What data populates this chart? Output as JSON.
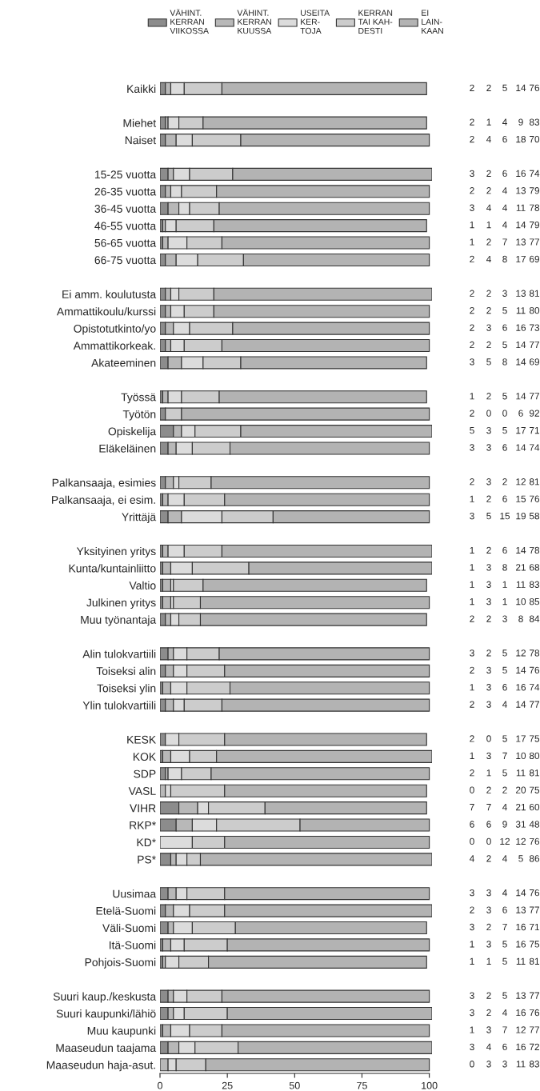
{
  "chart_data": {
    "type": "bar",
    "orientation": "horizontal",
    "stacked": true,
    "data_labels": true,
    "legend": "top",
    "grid": false,
    "tick_labels": "both",
    "categories": [
      "Kaikki",
      null,
      "Miehet",
      "Naiset",
      null,
      "15-25 vuotta",
      "26-35 vuotta",
      "36-45 vuotta",
      "46-55 vuotta",
      "56-65 vuotta",
      "66-75 vuotta",
      null,
      "Ei amm. koulutusta",
      "Ammattikoulu/kurssi",
      "Opistotutkinto/yo",
      "Ammattikorkeak.",
      "Akateeminen",
      null,
      "Työssä",
      "Työtön",
      "Opiskelija",
      "Eläkeläinen",
      null,
      "Palkansaaja, esimies",
      "Palkansaaja, ei esim.",
      "Yrittäjä",
      null,
      "Yksityinen yritys",
      "Kunta/kuntainliitto",
      "Valtio",
      "Julkinen yritys",
      "Muu työnantaja",
      null,
      "Alin tulokvartiili",
      "Toiseksi alin",
      "Toiseksi ylin",
      "Ylin tulokvartiili",
      null,
      "KESK",
      "KOK",
      "SDP",
      "VASL",
      "VIHR",
      "RKP*",
      "KD*",
      "PS*",
      null,
      "Uusimaa",
      "Etelä-Suomi",
      "Väli-Suomi",
      "Itä-Suomi",
      "Pohjois-Suomi",
      null,
      "Suuri kaup./keskusta",
      "Suuri kaupunki/lähiö",
      "Muu kaupunki",
      "Maaseudun taajama",
      "Maaseudun haja-asut."
    ],
    "series": [
      {
        "name": "VÄHINT.\nKERRAN\nVIIKOSSA",
        "color": "#8c8c8c",
        "values": [
          2,
          null,
          2,
          2,
          null,
          3,
          2,
          3,
          1,
          1,
          2,
          null,
          2,
          2,
          2,
          2,
          3,
          null,
          1,
          2,
          5,
          3,
          null,
          2,
          1,
          3,
          null,
          1,
          1,
          1,
          1,
          2,
          null,
          3,
          2,
          1,
          2,
          null,
          2,
          1,
          2,
          0,
          7,
          6,
          0,
          4,
          null,
          3,
          2,
          3,
          1,
          1,
          null,
          3,
          3,
          1,
          3,
          0
        ]
      },
      {
        "name": "VÄHINT.\nKERRAN\nKUUSSA",
        "color": "#b8b8b8",
        "values": [
          2,
          null,
          1,
          4,
          null,
          2,
          2,
          4,
          1,
          2,
          4,
          null,
          2,
          2,
          3,
          2,
          5,
          null,
          2,
          0,
          3,
          3,
          null,
          3,
          2,
          5,
          null,
          2,
          3,
          3,
          3,
          2,
          null,
          2,
          3,
          3,
          3,
          null,
          0,
          3,
          1,
          2,
          7,
          6,
          0,
          2,
          null,
          3,
          3,
          2,
          3,
          1,
          null,
          2,
          2,
          3,
          4,
          3
        ]
      },
      {
        "name": "USEITA\nKER-\nTOJA",
        "color": "#dcdcdc",
        "values": [
          5,
          null,
          4,
          6,
          null,
          6,
          4,
          4,
          4,
          7,
          8,
          null,
          3,
          5,
          6,
          5,
          8,
          null,
          5,
          0,
          5,
          6,
          null,
          2,
          6,
          15,
          null,
          6,
          8,
          1,
          1,
          3,
          null,
          5,
          5,
          6,
          4,
          null,
          5,
          7,
          5,
          2,
          4,
          9,
          12,
          4,
          null,
          4,
          6,
          7,
          5,
          5,
          null,
          5,
          4,
          7,
          6,
          3
        ]
      },
      {
        "name": "KERRAN\nTAI KAH-\nDESTI",
        "color": "#cccccc",
        "values": [
          14,
          null,
          9,
          18,
          null,
          16,
          13,
          11,
          14,
          13,
          17,
          null,
          13,
          11,
          16,
          14,
          14,
          null,
          14,
          6,
          17,
          14,
          null,
          12,
          15,
          19,
          null,
          14,
          21,
          11,
          10,
          8,
          null,
          12,
          14,
          16,
          14,
          null,
          17,
          10,
          11,
          20,
          21,
          31,
          12,
          5,
          null,
          14,
          13,
          16,
          16,
          11,
          null,
          13,
          16,
          12,
          16,
          11
        ]
      },
      {
        "name": "EI\nLAIN-\nKAAN",
        "color": "#b3b3b3",
        "values": [
          76,
          null,
          83,
          70,
          null,
          74,
          79,
          78,
          79,
          77,
          69,
          null,
          81,
          80,
          73,
          77,
          69,
          null,
          77,
          92,
          71,
          74,
          null,
          81,
          76,
          58,
          null,
          78,
          68,
          83,
          85,
          84,
          null,
          78,
          76,
          74,
          77,
          null,
          75,
          80,
          81,
          75,
          60,
          48,
          76,
          86,
          null,
          76,
          77,
          71,
          75,
          81,
          null,
          77,
          76,
          77,
          72,
          83
        ]
      }
    ],
    "xlim": [
      0,
      101
    ],
    "xticks": [
      0,
      25,
      50,
      75,
      100
    ]
  }
}
